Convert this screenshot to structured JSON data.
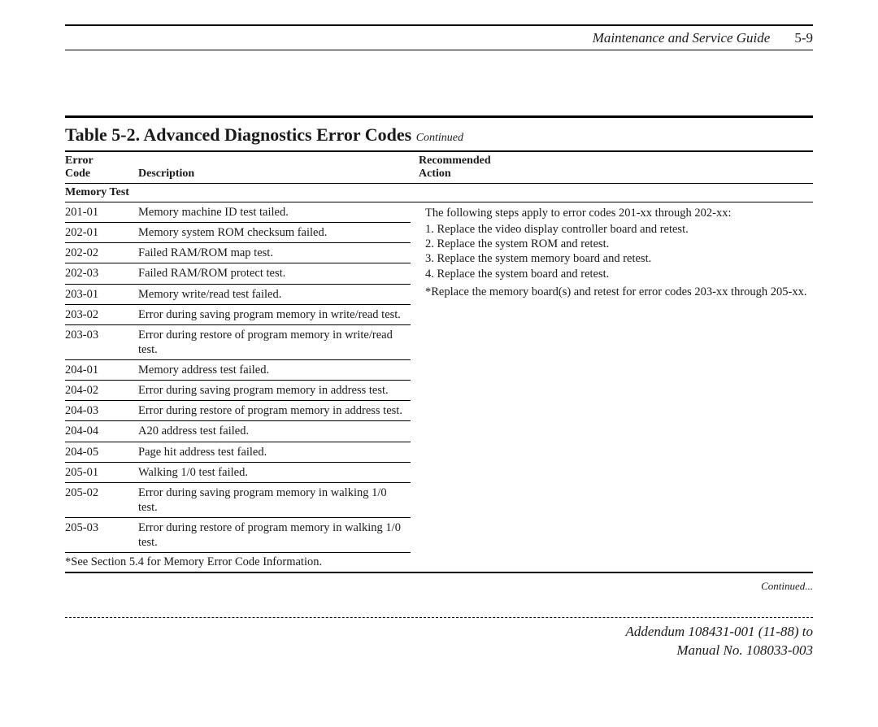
{
  "header": {
    "guide_title": "Maintenance and Service Guide",
    "page_num": "5-9"
  },
  "table": {
    "title_prefix": "Table 5-2. Advanced Diagnostics Error Codes",
    "title_suffix": "Continued",
    "head": {
      "col1a": "Error",
      "col1b": "Code",
      "col2": "Description",
      "col3a": "Recommended",
      "col3b": "Action"
    },
    "section": "Memory Test",
    "rows": [
      {
        "code": "201-01",
        "desc": "Memory machine ID test tailed."
      },
      {
        "code": "202-01",
        "desc": "Memory system ROM checksum failed."
      },
      {
        "code": "202-02",
        "desc": "Failed RAM/ROM map test."
      },
      {
        "code": "202-03",
        "desc": "Failed RAM/ROM protect test."
      },
      {
        "code": "203-01",
        "desc": "Memory write/read test failed."
      },
      {
        "code": "203-02",
        "desc": "Error during saving program memory in write/read test."
      },
      {
        "code": "203-03",
        "desc": "Error during restore of program memory in write/read test."
      },
      {
        "code": "204-01",
        "desc": "Memory address test failed."
      },
      {
        "code": "204-02",
        "desc": "Error during saving program memory in address test."
      },
      {
        "code": "204-03",
        "desc": "Error during restore of program memory in address test."
      },
      {
        "code": "204-04",
        "desc": "A20 address test failed."
      },
      {
        "code": "204-05",
        "desc": "Page hit address test failed."
      },
      {
        "code": "205-01",
        "desc": "Walking 1/0 test failed."
      },
      {
        "code": "205-02",
        "desc": "Error during saving program memory in walking 1/0 test."
      },
      {
        "code": "205-03",
        "desc": "Error during restore of program memory in walking 1/0 test."
      }
    ],
    "actions": {
      "intro": "The following steps apply to error codes 201-xx through 202-xx:",
      "steps": [
        "1. Replace the video display controller board and retest.",
        "2. Replace the system ROM and retest.",
        "3. Replace the system memory board and retest.",
        "4. Replace the system board and retest."
      ],
      "note": "*Replace the memory board(s) and retest for error codes 203-xx through 205-xx."
    },
    "footnote": "*See Section 5.4 for Memory Error Code Information.",
    "continued": "Continued..."
  },
  "footer": {
    "line1": "Addendum 108431-001 (11-88) to",
    "line2": "Manual No. 108033-003"
  },
  "style": {
    "text_color": "#1a1a1a",
    "rule_color": "#000000",
    "bg": "#ffffff",
    "body_fontsize": 14.5,
    "title_fontsize": 22,
    "header_fontsize": 17
  }
}
